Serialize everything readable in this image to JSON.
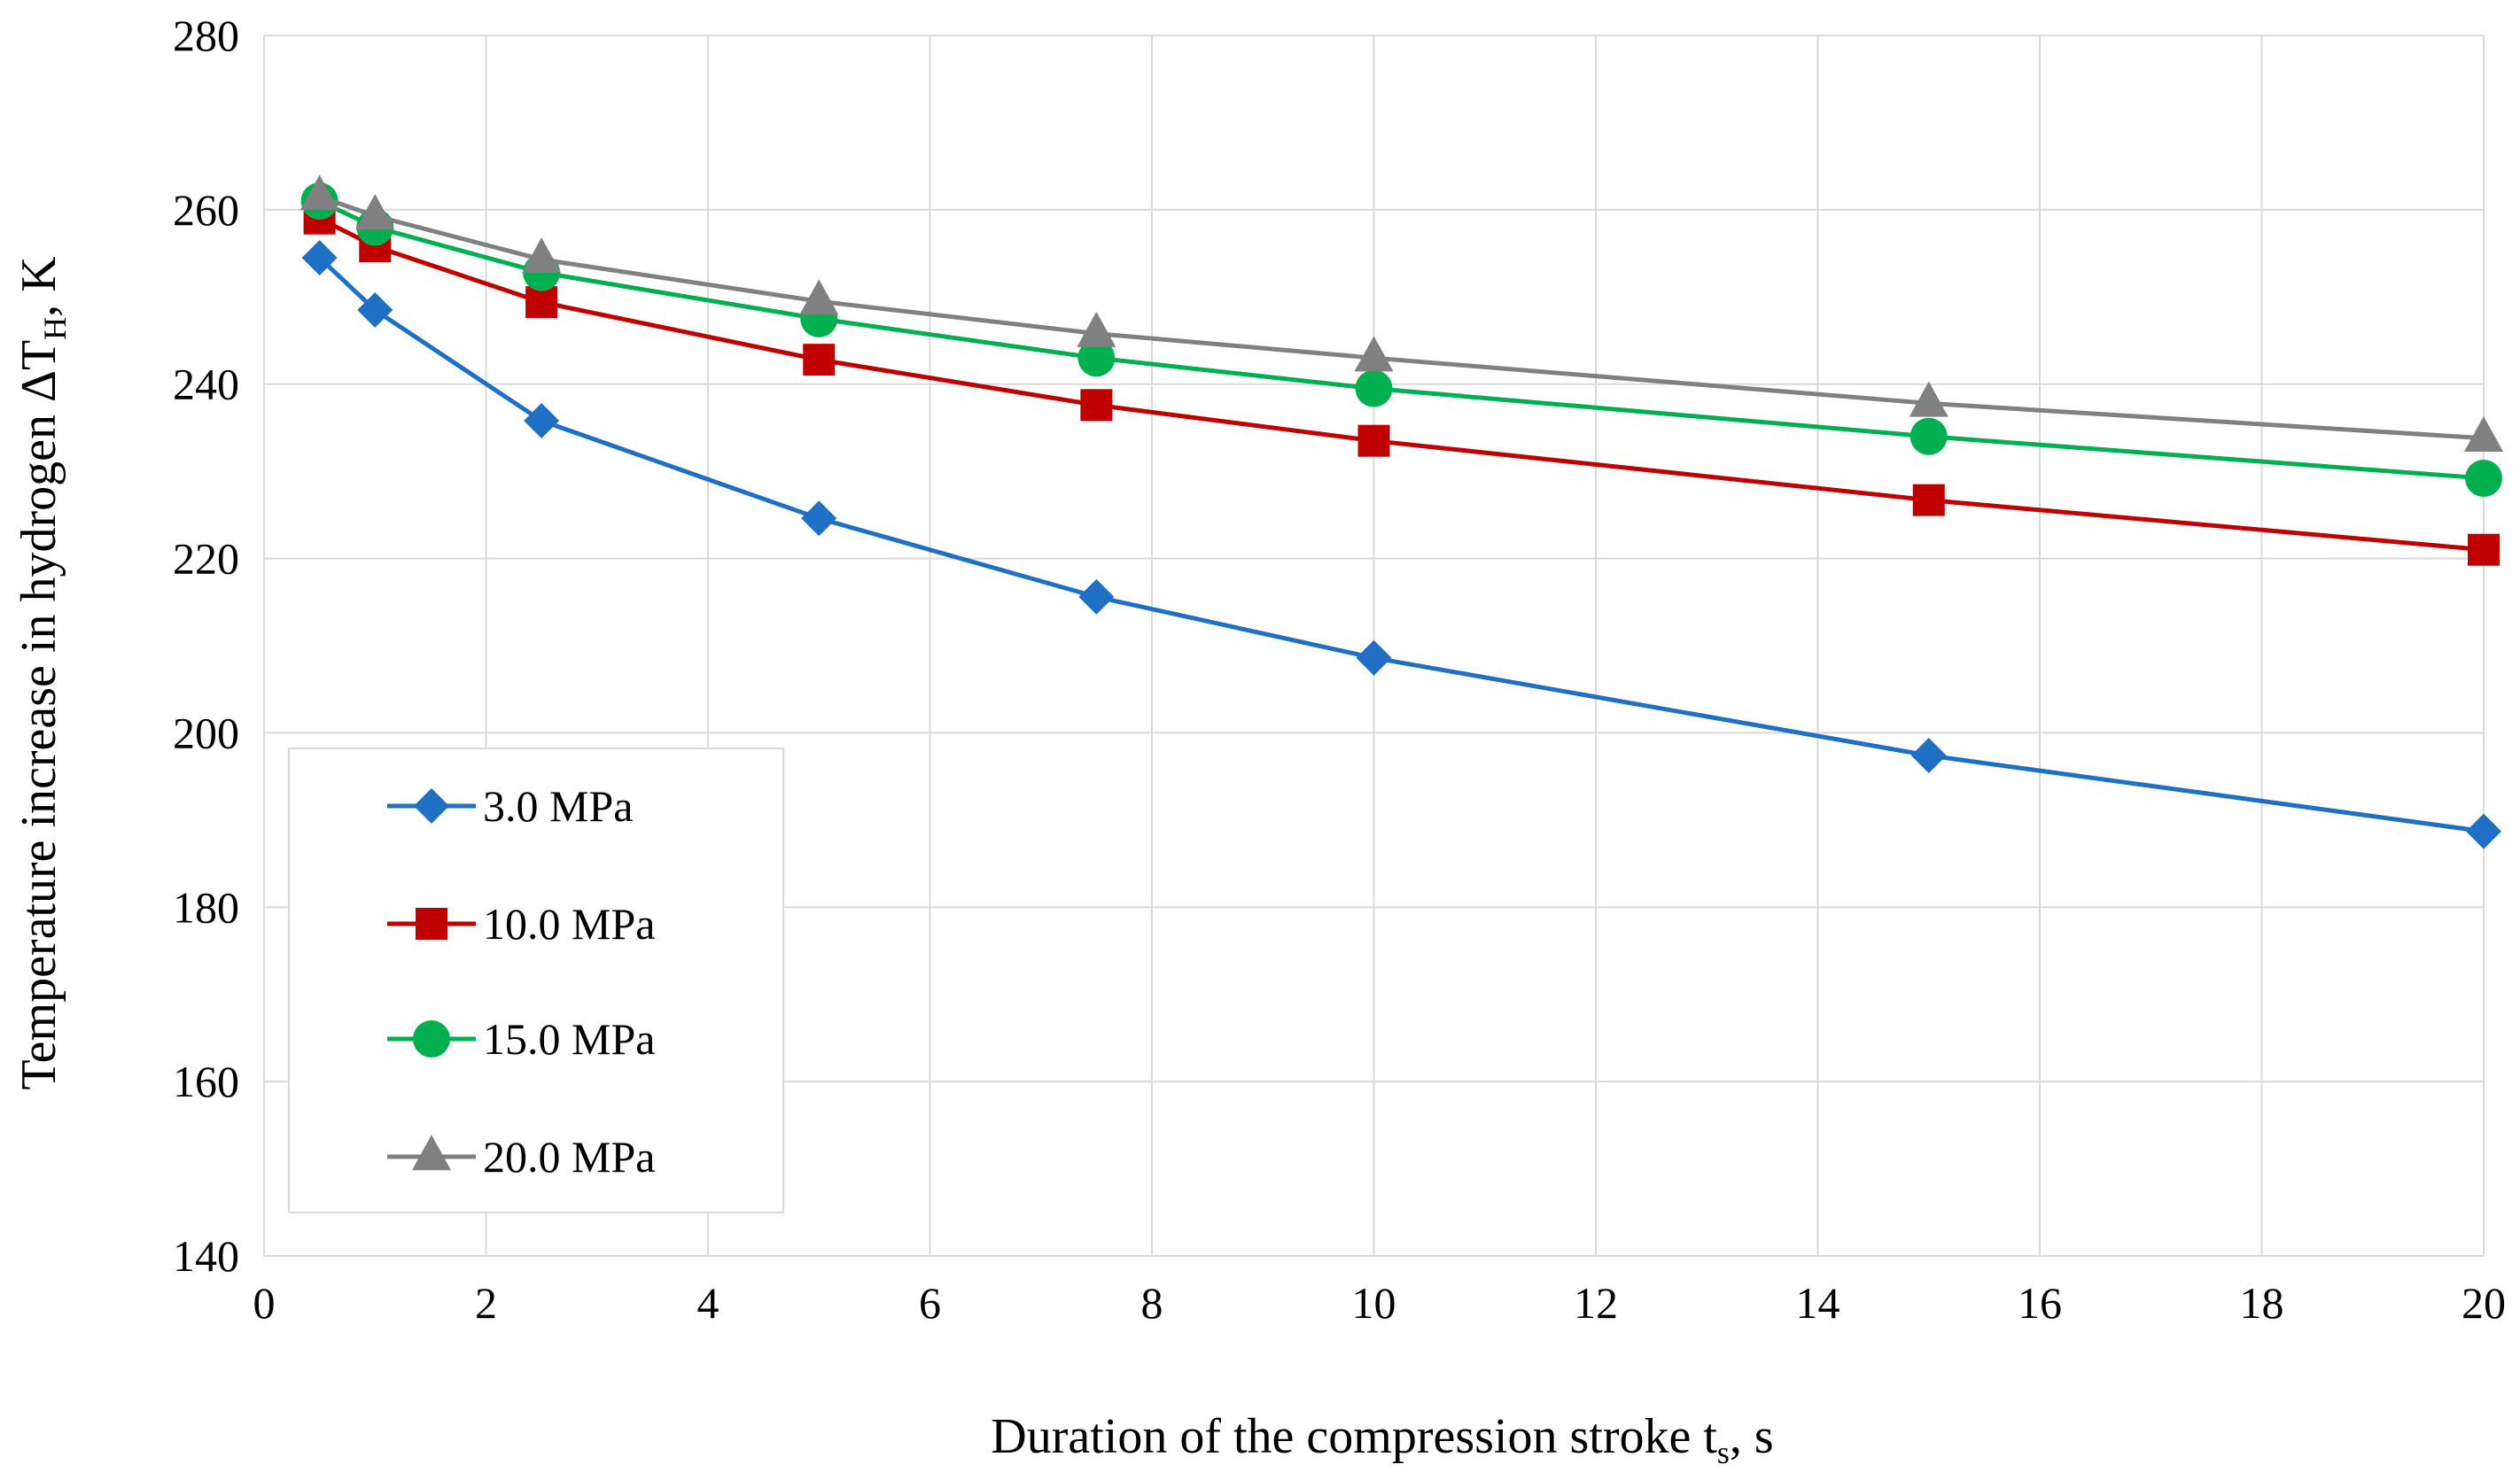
{
  "chart_data": {
    "type": "line",
    "title": "",
    "xlabel": {
      "main": "Duration of the compression stroke t",
      "sub": "s",
      "suffix": ", s"
    },
    "ylabel": {
      "main": "Temperature increase in hydrogen  ΔT",
      "sub": "H",
      "suffix": ", K"
    },
    "xlim": [
      0,
      20
    ],
    "ylim": [
      140,
      280
    ],
    "x_ticks": [
      0,
      2,
      4,
      6,
      8,
      10,
      12,
      14,
      16,
      18,
      20
    ],
    "y_ticks": [
      140,
      160,
      180,
      200,
      220,
      240,
      260,
      280
    ],
    "grid": true,
    "legend_position": "lower-left",
    "x": [
      0.5,
      1,
      2.5,
      5,
      7.5,
      10,
      15,
      20
    ],
    "series": [
      {
        "name": "3.0 MPa",
        "color": "#1f6fc4",
        "marker": "diamond",
        "values": [
          254.5,
          248.5,
          235.8,
          224.6,
          215.6,
          208.6,
          197.4,
          188.7
        ]
      },
      {
        "name": "10.0 MPa",
        "color": "#c00000",
        "marker": "square",
        "values": [
          259.0,
          255.8,
          249.4,
          242.8,
          237.6,
          233.5,
          226.7,
          221.0
        ]
      },
      {
        "name": "15.0 MPa",
        "color": "#00b050",
        "marker": "circle",
        "values": [
          261.0,
          258.0,
          252.8,
          247.5,
          243.0,
          239.5,
          234.0,
          229.2
        ]
      },
      {
        "name": "20.0 MPa",
        "color": "#808080",
        "marker": "triangle",
        "values": [
          261.5,
          259.3,
          254.3,
          249.5,
          245.8,
          243.0,
          237.8,
          233.8
        ]
      }
    ]
  }
}
